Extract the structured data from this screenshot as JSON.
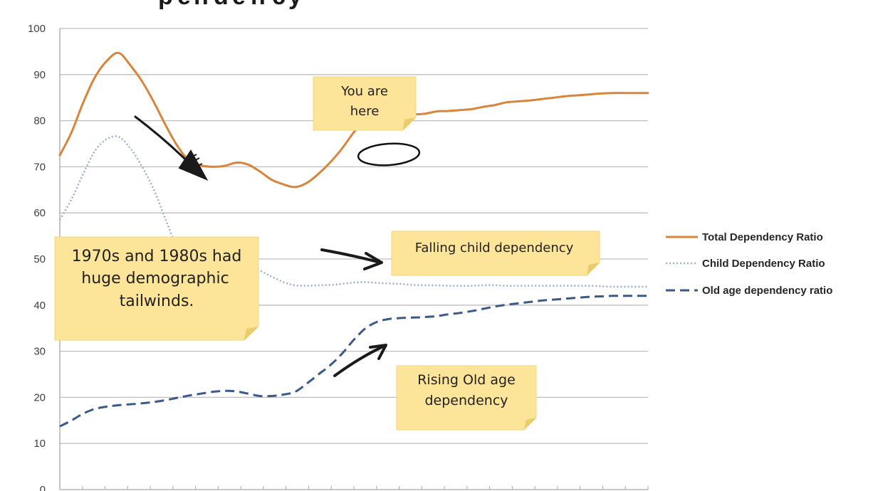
{
  "chart_data": {
    "type": "line",
    "title": "",
    "xlabel": "",
    "ylabel": "",
    "ylim": [
      0,
      100
    ],
    "yticks": [
      0,
      10,
      20,
      30,
      40,
      50,
      60,
      70,
      80,
      90,
      100
    ],
    "grid": "horizontal",
    "legend_position": "right",
    "x": [
      0,
      2,
      4,
      6,
      8,
      10,
      12,
      14,
      16,
      18,
      20,
      22,
      24,
      26,
      28,
      30,
      32,
      34,
      36,
      38,
      40,
      42,
      44,
      46,
      48,
      50,
      52,
      54,
      56,
      58,
      60,
      62,
      64,
      66,
      68,
      70,
      72,
      74,
      76,
      78,
      80,
      82,
      84,
      86,
      88,
      90,
      92,
      94,
      96,
      98,
      100
    ],
    "series": [
      {
        "name": "Total Dependency Ratio",
        "style": "solid",
        "color": "#D9843B",
        "values": [
          72.5,
          77.5,
          84.0,
          89.5,
          93.0,
          94.7,
          92.0,
          88.5,
          84.0,
          79.0,
          74.5,
          71.3,
          70.3,
          70.0,
          70.2,
          70.9,
          70.5,
          69.0,
          67.2,
          66.2,
          65.6,
          66.5,
          68.5,
          71.0,
          74.0,
          77.5,
          80.0,
          81.3,
          82.0,
          81.7,
          81.4,
          81.5,
          82.0,
          82.1,
          82.3,
          82.5,
          83.0,
          83.4,
          84.0,
          84.2,
          84.4,
          84.7,
          85.0,
          85.3,
          85.5,
          85.7,
          85.9,
          86.0,
          86.0,
          86.0,
          86.0
        ]
      },
      {
        "name": "Child Dependency Ratio",
        "style": "dotted",
        "color": "#9FAFD0",
        "values": [
          58.5,
          63.0,
          68.5,
          73.5,
          76.0,
          76.5,
          74.0,
          70.0,
          65.0,
          58.5,
          52.5,
          50.0,
          49.8,
          49.8,
          49.7,
          49.6,
          48.8,
          47.5,
          46.2,
          45.0,
          44.3,
          44.2,
          44.3,
          44.4,
          44.6,
          44.9,
          45.0,
          44.8,
          44.7,
          44.6,
          44.4,
          44.3,
          44.3,
          44.2,
          44.2,
          44.2,
          44.3,
          44.3,
          44.2,
          44.2,
          44.2,
          44.2,
          44.2,
          44.2,
          44.2,
          44.2,
          44.1,
          44.0,
          44.0,
          44.0,
          44.0
        ]
      },
      {
        "name": "Old age dependency ratio",
        "style": "dashed",
        "color": "#3A5A8C",
        "values": [
          13.7,
          15.0,
          16.5,
          17.5,
          18.0,
          18.3,
          18.5,
          18.7,
          19.0,
          19.4,
          19.9,
          20.4,
          20.8,
          21.2,
          21.4,
          21.3,
          20.8,
          20.3,
          20.3,
          20.6,
          21.2,
          23.0,
          25.0,
          27.0,
          29.5,
          32.5,
          35.0,
          36.4,
          37.0,
          37.2,
          37.3,
          37.4,
          37.6,
          38.0,
          38.3,
          38.7,
          39.2,
          39.7,
          40.1,
          40.4,
          40.7,
          41.0,
          41.2,
          41.4,
          41.6,
          41.8,
          41.9,
          42.0,
          42.0,
          42.0,
          42.0
        ]
      }
    ],
    "annotations": [
      {
        "text_lines": [
          "You are",
          "here"
        ]
      },
      {
        "text_lines": [
          "1970s and 1980s had",
          "huge demographic",
          "tailwinds."
        ]
      },
      {
        "text_lines": [
          "Falling child dependency"
        ]
      },
      {
        "text_lines": [
          "Rising Old age",
          "dependency"
        ]
      }
    ]
  },
  "colors": {
    "note_fill": "#FCE498",
    "note_fold": "#EBCB6B",
    "grid": "#BFBFBF",
    "axis": "#A6A6A6",
    "ink": "#1A1A1A"
  }
}
